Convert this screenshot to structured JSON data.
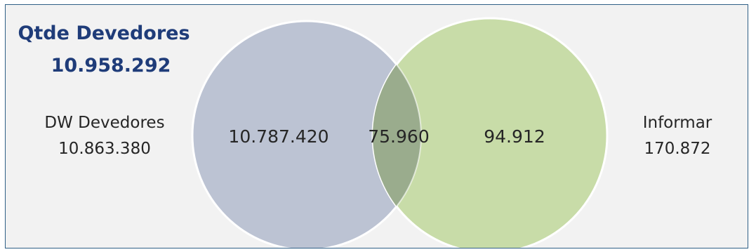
{
  "title": {
    "label": "Qtde Devedores",
    "value": "10.958.292"
  },
  "left_set": {
    "label": "DW Devedores",
    "total": "10.863.380",
    "only_value": "10.787.420",
    "color": "#bcc3d3"
  },
  "right_set": {
    "label": "Informar",
    "total": "170.872",
    "only_value": "94.912",
    "color": "#c8dca8"
  },
  "intersection": {
    "value": "75.960",
    "color": "#9aac8d"
  },
  "colors": {
    "title": "#1f3c79",
    "border": "#2f5f86",
    "background": "#f2f2f2",
    "text": "#262626"
  }
}
